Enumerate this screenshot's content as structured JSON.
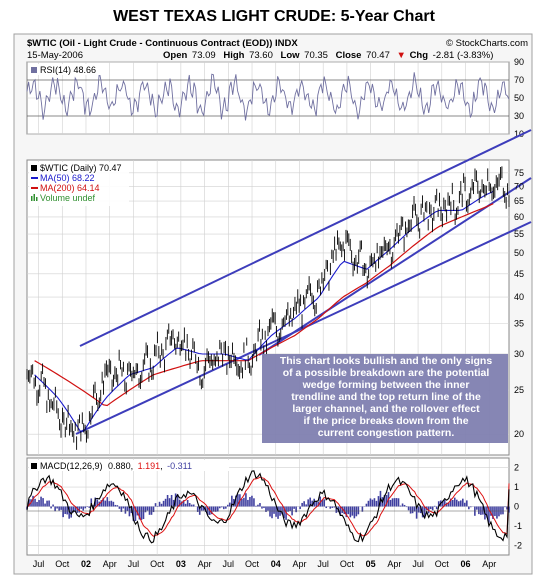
{
  "title": "WEST TEXAS LIGHT CRUDE: 5-Year Chart",
  "header": {
    "symbol_line": "$WTIC (Oil - Light Crude - Continuous Contract (EOD)) INDX",
    "source": "© StockCharts.com",
    "date": "15-May-2006",
    "open_label": "Open",
    "open": "73.09",
    "high_label": "High",
    "high": "73.60",
    "low_label": "Low",
    "low": "70.35",
    "close_label": "Close",
    "close": "70.47",
    "chg_label": "Chg",
    "chg": "-2.81 (-3.83%)",
    "chg_arrow": "▼"
  },
  "rsi_panel": {
    "label": "RSI(14) 48.66",
    "ticks": [
      "90",
      "70",
      "50",
      "30",
      "10"
    ],
    "value": 48.66
  },
  "price_panel": {
    "legend": {
      "main": "$WTIC (Daily) 70.47",
      "ma50": "MA(50) 68.22",
      "ma200": "MA(200) 64.14",
      "volume": "Volume undef"
    },
    "ticks": [
      "75",
      "70",
      "65",
      "60",
      "55",
      "50",
      "45",
      "40",
      "35",
      "30",
      "25",
      "20"
    ],
    "annotation": [
      "This chart looks bullish and the only signs",
      "of a possible breakdown are the potential",
      "wedge forming between the inner",
      "trendline and the top return line of the",
      "larger channel, and the rollover effect",
      "if the price breaks down from the",
      "current congestion pattern."
    ]
  },
  "macd_panel": {
    "label_prefix": "MACD(12,26,9)",
    "macd": "0.880",
    "signal": "1.191",
    "hist": "-0.311",
    "ticks": [
      "2",
      "1",
      "0",
      "-1",
      "-2"
    ]
  },
  "x_axis": {
    "labels": [
      "Jul",
      "Oct",
      "02",
      "Apr",
      "Jul",
      "Oct",
      "03",
      "Apr",
      "Jul",
      "Oct",
      "04",
      "Apr",
      "Jul",
      "Oct",
      "05",
      "Apr",
      "Jul",
      "Oct",
      "06",
      "Apr"
    ],
    "year_labels": [
      "02",
      "03",
      "04",
      "05",
      "06"
    ]
  },
  "colors": {
    "price": "#000000",
    "ma50": "#1a1acc",
    "ma200": "#d01010",
    "channel": "#3d3dbb",
    "annotation_bg": "#8080b0",
    "rsi_line": "#7070a0",
    "macd_signal": "#dd1111",
    "macd_hist": "#4040a0",
    "grid": "#d0d0d0"
  },
  "chart_data": {
    "type": "line",
    "x": [
      "2001-07",
      "2001-10",
      "2002-01",
      "2002-04",
      "2002-07",
      "2002-10",
      "2003-01",
      "2003-04",
      "2003-07",
      "2003-10",
      "2004-01",
      "2004-04",
      "2004-07",
      "2004-10",
      "2005-01",
      "2005-04",
      "2005-07",
      "2005-10",
      "2006-01",
      "2006-04",
      "2006-05"
    ],
    "series": [
      {
        "name": "$WTIC (Daily)",
        "values": [
          27,
          22,
          20,
          27,
          27,
          29,
          33,
          28,
          30,
          29,
          34,
          37,
          42,
          53,
          46,
          52,
          60,
          62,
          66,
          71,
          70.47
        ]
      },
      {
        "name": "MA(50)",
        "values": [
          27,
          24,
          20,
          24,
          27,
          28,
          31,
          30,
          30,
          29,
          33,
          36,
          40,
          48,
          46,
          51,
          57,
          62,
          62,
          67,
          68.22
        ]
      },
      {
        "name": "MA(200)",
        "values": [
          29,
          27,
          25,
          23,
          25,
          27,
          28,
          29,
          29,
          29,
          31,
          33,
          36,
          40,
          43,
          47,
          52,
          57,
          60,
          63,
          64.14
        ]
      }
    ],
    "ylabel": "",
    "ylim": [
      18,
      80
    ],
    "log_scale": true,
    "rsi": {
      "name": "RSI(14)",
      "last": 48.66,
      "ylim": [
        10,
        90
      ]
    },
    "macd": {
      "params": "12,26,9",
      "macd": 0.88,
      "signal": 1.191,
      "hist": -0.311,
      "ylim": [
        -2.5,
        2.5
      ]
    }
  }
}
